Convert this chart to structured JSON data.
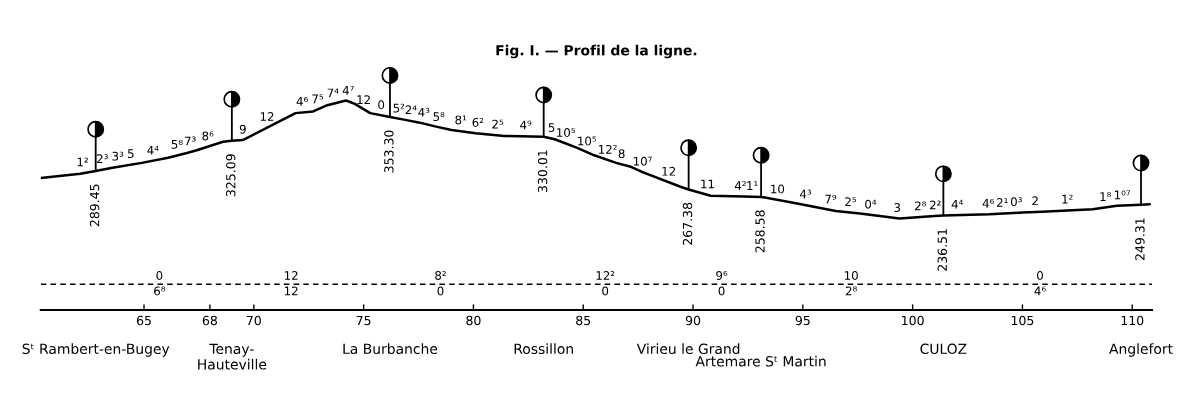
{
  "chart_data": {
    "type": "line",
    "title": "Fig. I. — Profil de la ligne.",
    "x": [
      60.3,
      62.1,
      62.8,
      63.5,
      64.9,
      66.1,
      67.0,
      67.4,
      68.6,
      69.0,
      69.5,
      71.9,
      72.7,
      73.3,
      74.2,
      74.6,
      75.3,
      76.2,
      76.9,
      77.5,
      78.3,
      79.0,
      80.1,
      81.4,
      83.2,
      83.7,
      84.7,
      85.5,
      86.5,
      87.2,
      87.7,
      89.4,
      89.8,
      90.8,
      92.3,
      93.1,
      94.5,
      95.5,
      96.5,
      97.6,
      99.4,
      101.0,
      101.4,
      103.5,
      105.0,
      105.9,
      108.2,
      109.3,
      110.4,
      110.8
    ],
    "values": [
      281,
      286,
      289.45,
      293,
      299,
      305,
      311,
      314,
      324,
      325.09,
      326,
      358,
      360,
      367,
      373,
      369,
      358,
      353.3,
      350,
      347,
      342,
      338,
      334,
      331,
      330.01,
      327,
      317,
      308,
      299,
      294,
      288,
      271,
      267.38,
      260,
      259,
      258.58,
      252,
      247,
      242,
      239,
      233,
      236,
      236.51,
      238,
      240,
      241,
      244,
      248,
      249.31,
      250
    ],
    "value_labels": [
      null,
      null,
      "289.45",
      null,
      null,
      null,
      null,
      null,
      null,
      "325.09",
      null,
      null,
      null,
      null,
      null,
      null,
      null,
      "353.30",
      null,
      null,
      null,
      null,
      null,
      null,
      "330.01",
      null,
      null,
      null,
      null,
      null,
      null,
      null,
      "267.38",
      null,
      null,
      "258.58",
      null,
      null,
      null,
      null,
      null,
      null,
      "236.51",
      null,
      null,
      null,
      null,
      null,
      "249.31",
      null
    ],
    "color": "#000000",
    "xlim": [
      60.3,
      110.9
    ],
    "xticks": [
      65,
      68,
      70,
      75,
      80,
      85,
      90,
      95,
      100,
      105,
      110
    ],
    "tick_labels": "x",
    "ref_lines": [
      {
        "axis": "y",
        "value": 155,
        "color": "#000000",
        "line_style": "dashed"
      }
    ],
    "annotations": [
      "Sᵗ Rambert-en-Bugey",
      "Tenay-\nHauteville",
      "La Burbanche",
      "Rossillon",
      "Virieu le Grand",
      "Artemare Sᵗ Martin",
      "CULOZ",
      "Anglefort",
      {
        "text": "1²",
        "x": 62.2,
        "y": 287
      },
      {
        "text": "2³",
        "x": 63.1,
        "y": 291
      },
      {
        "text": "3³",
        "x": 63.8,
        "y": 294
      },
      {
        "text": "5",
        "x": 64.4,
        "y": 297
      },
      {
        "text": "4⁴",
        "x": 65.4,
        "y": 301
      },
      {
        "text": "5⁸",
        "x": 66.5,
        "y": 308
      },
      {
        "text": "7³",
        "x": 67.1,
        "y": 312
      },
      {
        "text": "8⁶",
        "x": 67.9,
        "y": 318
      },
      {
        "text": "9",
        "x": 69.5,
        "y": 326
      },
      {
        "text": "12",
        "x": 70.6,
        "y": 341
      },
      {
        "text": "4⁶",
        "x": 72.2,
        "y": 359
      },
      {
        "text": "7⁵",
        "x": 72.9,
        "y": 362
      },
      {
        "text": "7⁴",
        "x": 73.6,
        "y": 369
      },
      {
        "text": "4⁷",
        "x": 74.3,
        "y": 372
      },
      {
        "text": "12",
        "x": 75.0,
        "y": 361
      },
      {
        "text": "0",
        "x": 75.8,
        "y": 355
      },
      {
        "text": "5²",
        "x": 76.6,
        "y": 351
      },
      {
        "text": "2⁴",
        "x": 77.15,
        "y": 349
      },
      {
        "text": "4³",
        "x": 77.74,
        "y": 346
      },
      {
        "text": "5⁸",
        "x": 78.42,
        "y": 341
      },
      {
        "text": "8¹",
        "x": 79.42,
        "y": 337
      },
      {
        "text": "6²",
        "x": 80.2,
        "y": 334
      },
      {
        "text": "2⁵",
        "x": 81.1,
        "y": 332
      },
      {
        "text": "4⁹",
        "x": 82.38,
        "y": 331
      },
      {
        "text": "5",
        "x": 83.56,
        "y": 328
      },
      {
        "text": "10⁵",
        "x": 84.2,
        "y": 322
      },
      {
        "text": "10⁵",
        "x": 85.16,
        "y": 312
      },
      {
        "text": "12²",
        "x": 86.11,
        "y": 302
      },
      {
        "text": "8",
        "x": 86.75,
        "y": 297
      },
      {
        "text": "10⁷",
        "x": 87.7,
        "y": 288
      },
      {
        "text": "12",
        "x": 88.89,
        "y": 276
      },
      {
        "text": "11",
        "x": 90.66,
        "y": 261
      },
      {
        "text": "4²",
        "x": 92.16,
        "y": 259
      },
      {
        "text": "1¹",
        "x": 92.69,
        "y": 259
      },
      {
        "text": "10",
        "x": 93.84,
        "y": 255
      },
      {
        "text": "4³",
        "x": 95.12,
        "y": 249
      },
      {
        "text": "7⁹",
        "x": 96.26,
        "y": 243
      },
      {
        "text": "2⁵",
        "x": 97.17,
        "y": 240
      },
      {
        "text": "0⁴",
        "x": 98.08,
        "y": 237
      },
      {
        "text": "3",
        "x": 99.3,
        "y": 233
      },
      {
        "text": "2⁸",
        "x": 100.35,
        "y": 235
      },
      {
        "text": "2²",
        "x": 101.03,
        "y": 236
      },
      {
        "text": "4⁴",
        "x": 102.03,
        "y": 237
      },
      {
        "text": "4⁶",
        "x": 103.44,
        "y": 238
      },
      {
        "text": "2¹",
        "x": 104.08,
        "y": 239
      },
      {
        "text": "0³",
        "x": 104.72,
        "y": 240
      },
      {
        "text": "2",
        "x": 105.58,
        "y": 241
      },
      {
        "text": "1²",
        "x": 107.04,
        "y": 243
      },
      {
        "text": "1⁸",
        "x": 108.77,
        "y": 246
      },
      {
        "text": "1⁰⁷",
        "x": 109.54,
        "y": 248
      },
      {
        "text": "0\n6⁸",
        "x": 65.7,
        "y": 155
      },
      {
        "text": "12\n12",
        "x": 71.7,
        "y": 155
      },
      {
        "text": "8²\n0",
        "x": 78.5,
        "y": 155
      },
      {
        "text": "12²\n0",
        "x": 86.0,
        "y": 155
      },
      {
        "text": "9⁶\n0",
        "x": 91.3,
        "y": 155
      },
      {
        "text": "10\n2⁸",
        "x": 97.2,
        "y": 155
      },
      {
        "text": "0\n4⁶",
        "x": 105.8,
        "y": 155
      }
    ]
  }
}
